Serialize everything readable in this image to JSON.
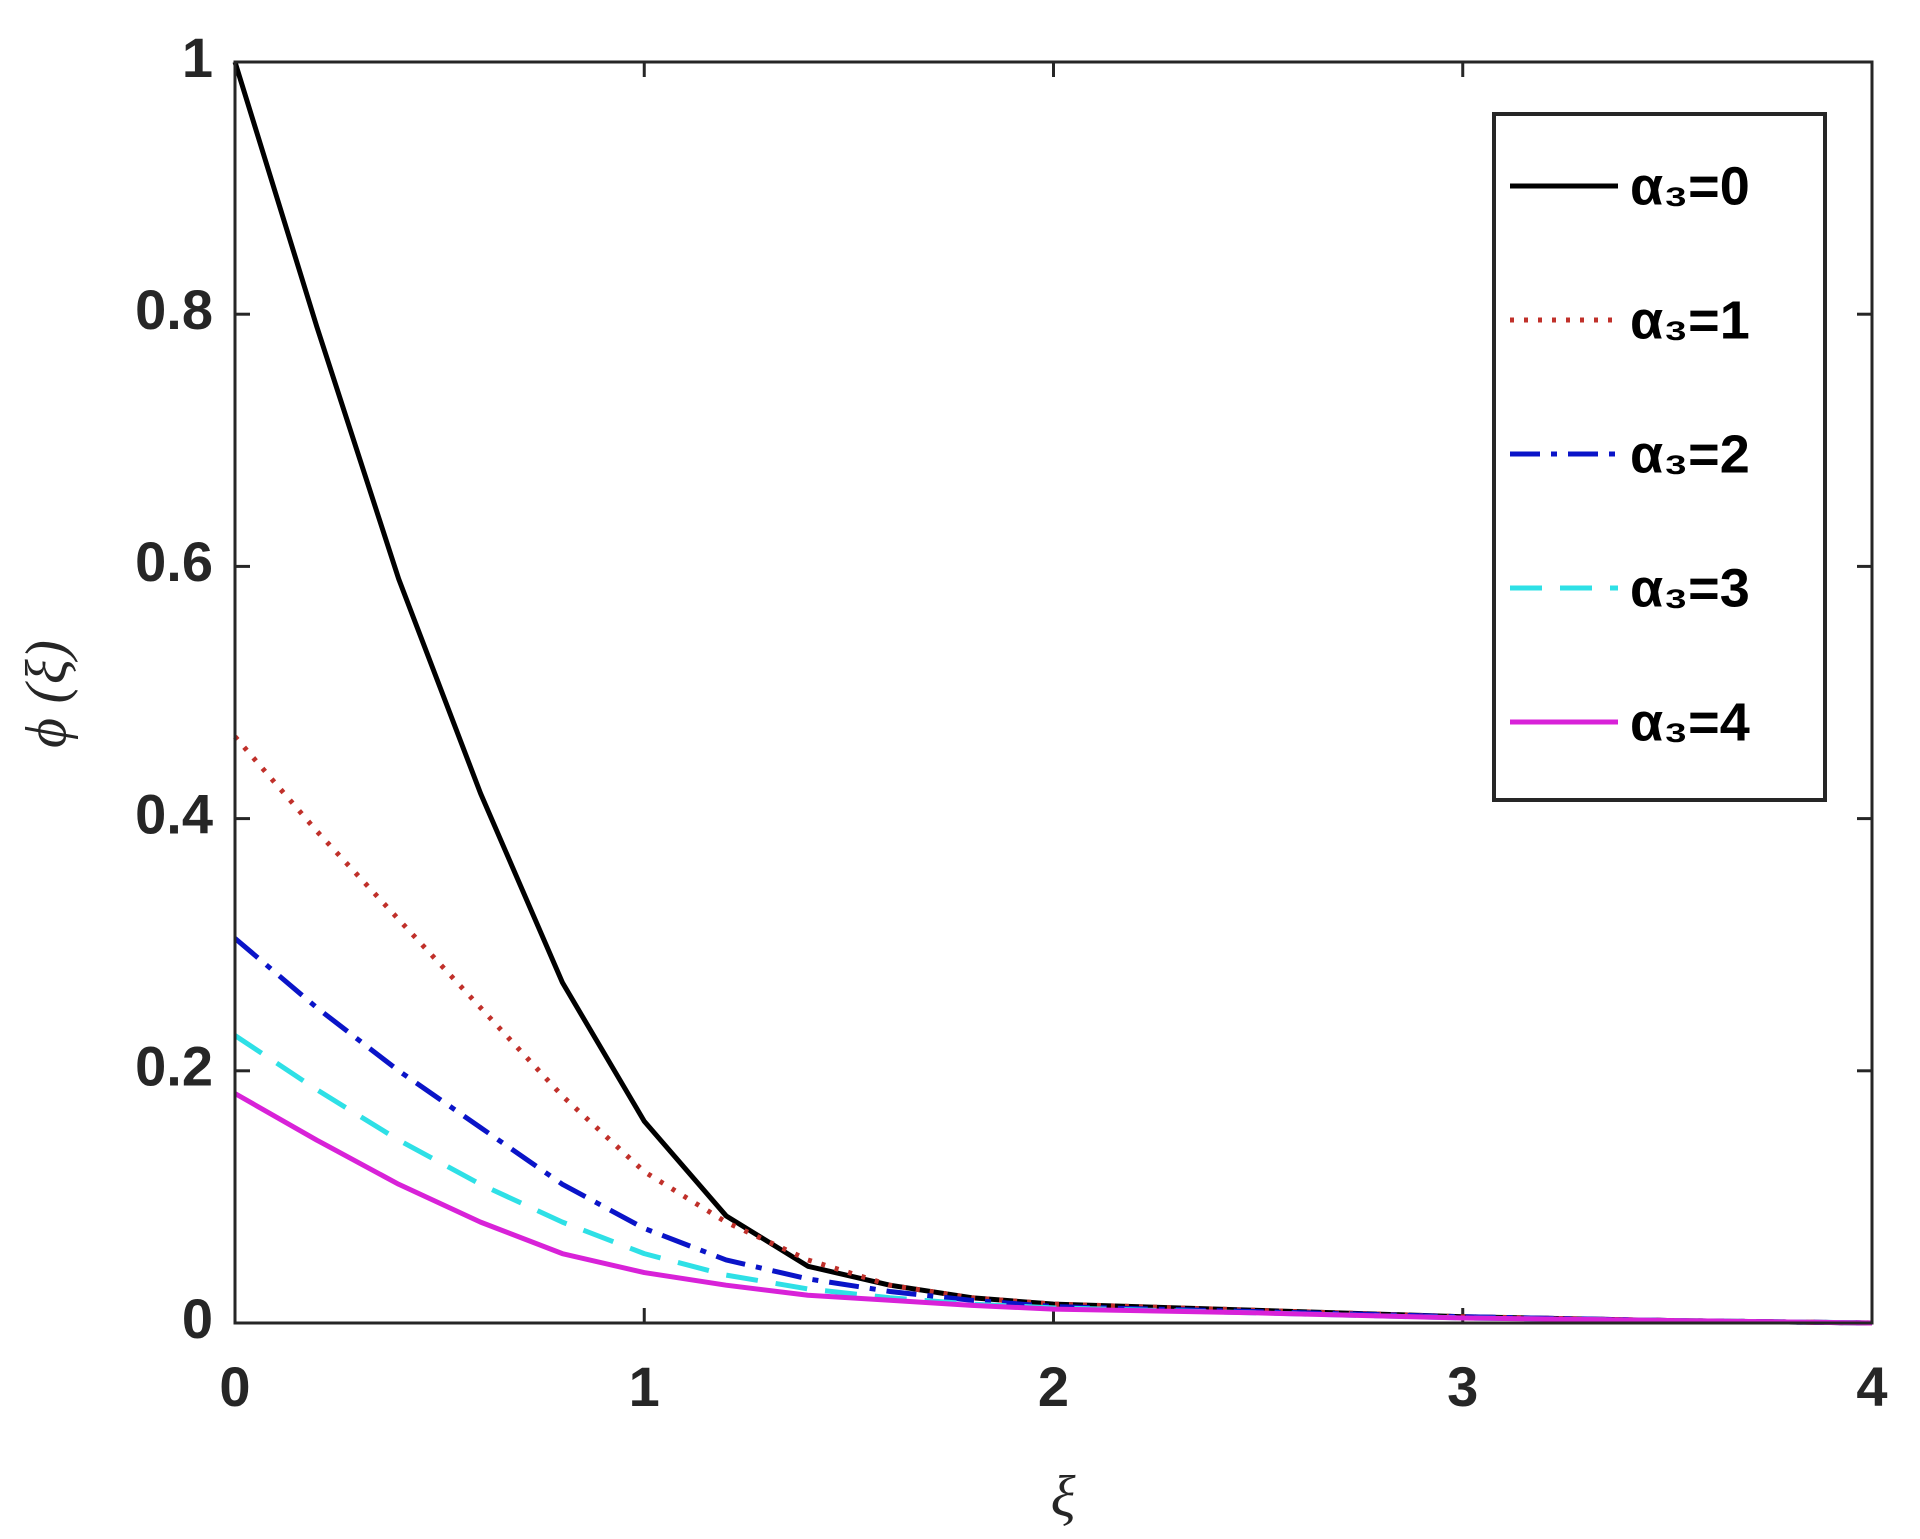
{
  "chart_data": {
    "type": "line",
    "xlabel": "ξ",
    "ylabel": "ϕ (ξ)",
    "x": [
      0,
      0.2,
      0.4,
      0.6,
      0.8,
      1.0,
      1.2,
      1.4,
      1.6,
      1.8,
      2.0,
      2.5,
      3.0,
      3.5,
      4.0
    ],
    "series": [
      {
        "name": "α₃=0",
        "color": "#000000",
        "dash": "solid",
        "values": [
          1.0,
          0.79,
          0.59,
          0.42,
          0.27,
          0.16,
          0.085,
          0.045,
          0.03,
          0.02,
          0.015,
          0.01,
          0.005,
          0.002,
          0
        ]
      },
      {
        "name": "α₃=1",
        "color": "#c0302a",
        "dash": "dotted",
        "values": [
          0.465,
          0.39,
          0.32,
          0.25,
          0.18,
          0.12,
          0.08,
          0.05,
          0.03,
          0.02,
          0.015,
          0.01,
          0.005,
          0.002,
          0
        ]
      },
      {
        "name": "α₃=2",
        "color": "#0a14c8",
        "dash": "dashdot",
        "values": [
          0.305,
          0.25,
          0.2,
          0.155,
          0.11,
          0.075,
          0.05,
          0.035,
          0.025,
          0.018,
          0.013,
          0.009,
          0.005,
          0.002,
          0
        ]
      },
      {
        "name": "α₃=3",
        "color": "#2ee0e6",
        "dash": "dashed",
        "values": [
          0.228,
          0.185,
          0.145,
          0.11,
          0.08,
          0.055,
          0.038,
          0.027,
          0.02,
          0.015,
          0.012,
          0.008,
          0.004,
          0.002,
          0
        ]
      },
      {
        "name": "α₃=4",
        "color": "#d822d8",
        "dash": "solid",
        "values": [
          0.182,
          0.145,
          0.11,
          0.08,
          0.055,
          0.04,
          0.03,
          0.022,
          0.018,
          0.014,
          0.011,
          0.008,
          0.004,
          0.002,
          0
        ]
      }
    ],
    "xlim": [
      0,
      4
    ],
    "ylim": [
      0,
      1
    ],
    "xticks": [
      0,
      1,
      2,
      3,
      4
    ],
    "yticks": [
      0,
      0.2,
      0.4,
      0.6,
      0.8,
      1
    ],
    "grid": false,
    "legend": "upper right"
  }
}
